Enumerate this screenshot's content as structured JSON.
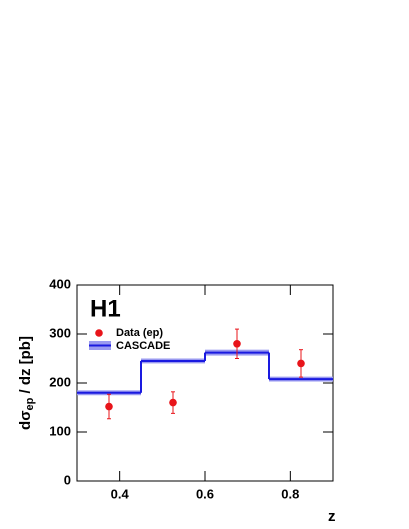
{
  "chart_data": {
    "type": "hist_points",
    "annotation": "H1",
    "xlabel": "z",
    "ylabel": "dσ",
    "ylabel_sub": "ep",
    "ylabel_rest": " / dz [pb]",
    "xlim": [
      0.3,
      0.9
    ],
    "xticks": [
      0.4,
      0.6,
      0.8
    ],
    "ylim": [
      0,
      400
    ],
    "yticks": [
      0,
      100,
      200,
      300,
      400
    ],
    "data": {
      "name": "Data (ep)",
      "color": "#e8141a",
      "x": [
        0.375,
        0.525,
        0.675,
        0.825
      ],
      "values": [
        152,
        160,
        280,
        240
      ],
      "errors": [
        25,
        22,
        30,
        28
      ]
    },
    "model": {
      "name": "CASCADE",
      "color": "#1a1ae0",
      "band_color": "#9a9af0",
      "bins": [
        0.3,
        0.45,
        0.6,
        0.75,
        0.9
      ],
      "values": [
        180,
        245,
        262,
        208
      ],
      "errors": [
        5,
        5,
        6,
        5
      ]
    }
  }
}
